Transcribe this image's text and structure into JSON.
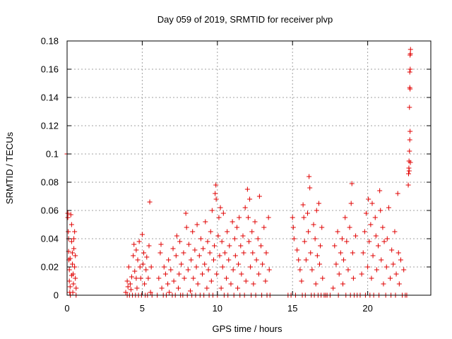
{
  "chart_data": {
    "type": "scatter",
    "title": "Day 059 of 2019, SRMTID for receiver plvp",
    "xlabel": "GPS time / hours",
    "ylabel": "SRMTID / TECUs",
    "xlim": [
      0,
      24.2
    ],
    "ylim": [
      0,
      0.18
    ],
    "xticks": [
      0,
      5,
      10,
      15,
      20
    ],
    "yticks": [
      0,
      0.02,
      0.04,
      0.06,
      0.08,
      0.1,
      0.12,
      0.14,
      0.16,
      0.18
    ],
    "xtick_labels": [
      "0",
      "5",
      "10",
      "15",
      "20"
    ],
    "ytick_labels": [
      "0",
      "0.02",
      "0.04",
      "0.06",
      "0.08",
      "0.1",
      "0.12",
      "0.14",
      "0.16",
      "0.18"
    ],
    "grid": true,
    "marker": "+",
    "color": "#e00000",
    "series": [
      {
        "values": [
          [
            0.0,
            0.1
          ],
          [
            0.05,
            0.058
          ],
          [
            0.05,
            0.055
          ],
          [
            0.08,
            0.045
          ],
          [
            0.1,
            0.04
          ],
          [
            0.1,
            0.031
          ],
          [
            0.12,
            0.025
          ],
          [
            0.15,
            0.018
          ],
          [
            0.15,
            0.01
          ],
          [
            0.2,
            0.006
          ],
          [
            0.18,
            0.002
          ],
          [
            0.22,
            0.0
          ],
          [
            0.25,
            0.057
          ],
          [
            0.3,
            0.05
          ],
          [
            0.3,
            0.038
          ],
          [
            0.35,
            0.03
          ],
          [
            0.35,
            0.022
          ],
          [
            0.4,
            0.015
          ],
          [
            0.42,
            0.008
          ],
          [
            0.45,
            0.04
          ],
          [
            0.45,
            0.033
          ],
          [
            0.5,
            0.02
          ],
          [
            0.5,
            0.045
          ],
          [
            0.55,
            0.028
          ],
          [
            0.55,
            0.012
          ],
          [
            0.6,
            0.0
          ],
          [
            0.6,
            0.005
          ],
          [
            0.3,
            0.014
          ],
          [
            0.2,
            0.026
          ],
          [
            0.38,
            0.002
          ],
          [
            3.9,
            0.002
          ],
          [
            4.0,
            0.0
          ],
          [
            4.0,
            0.01
          ],
          [
            4.05,
            0.006
          ],
          [
            4.1,
            0.02
          ],
          [
            4.15,
            0.0
          ],
          [
            4.2,
            0.008
          ],
          [
            4.3,
            0.013
          ],
          [
            4.35,
            0.0
          ],
          [
            4.4,
            0.028
          ],
          [
            4.5,
            0.017
          ],
          [
            4.55,
            0.0
          ],
          [
            4.6,
            0.032
          ],
          [
            4.65,
            0.005
          ],
          [
            4.7,
            0.025
          ],
          [
            4.75,
            0.0
          ],
          [
            4.8,
            0.038
          ],
          [
            4.85,
            0.02
          ],
          [
            4.9,
            0.012
          ],
          [
            4.95,
            0.0
          ],
          [
            5.0,
            0.043
          ],
          [
            5.05,
            0.022
          ],
          [
            5.1,
            0.03
          ],
          [
            5.15,
            0.008
          ],
          [
            5.2,
            0.0
          ],
          [
            5.25,
            0.018
          ],
          [
            5.3,
            0.027
          ],
          [
            5.35,
            0.0
          ],
          [
            5.4,
            0.012
          ],
          [
            5.45,
            0.035
          ],
          [
            5.5,
            0.066
          ],
          [
            5.55,
            0.002
          ],
          [
            5.6,
            0.02
          ],
          [
            5.65,
            0.0
          ],
          [
            4.45,
            0.036
          ],
          [
            4.25,
            0.004
          ],
          [
            4.6,
            0.012
          ],
          [
            6.0,
            0.0
          ],
          [
            6.1,
            0.012
          ],
          [
            6.2,
            0.03
          ],
          [
            6.25,
            0.036
          ],
          [
            6.3,
            0.005
          ],
          [
            6.4,
            0.0
          ],
          [
            6.45,
            0.02
          ],
          [
            6.55,
            0.015
          ],
          [
            6.6,
            0.0
          ],
          [
            6.7,
            0.008
          ],
          [
            6.75,
            0.025
          ],
          [
            6.8,
            0.002
          ],
          [
            6.9,
            0.018
          ],
          [
            7.0,
            0.0
          ],
          [
            7.05,
            0.033
          ],
          [
            7.1,
            0.01
          ],
          [
            7.2,
            0.0
          ],
          [
            7.25,
            0.028
          ],
          [
            7.3,
            0.042
          ],
          [
            7.4,
            0.005
          ],
          [
            7.45,
            0.015
          ],
          [
            7.5,
            0.038
          ],
          [
            7.55,
            0.0
          ],
          [
            7.6,
            0.022
          ],
          [
            7.7,
            0.0
          ],
          [
            7.75,
            0.03
          ],
          [
            7.8,
            0.012
          ],
          [
            7.9,
            0.058
          ],
          [
            7.95,
            0.048
          ],
          [
            8.0,
            0.0
          ],
          [
            8.05,
            0.018
          ],
          [
            8.1,
            0.036
          ],
          [
            8.2,
            0.003
          ],
          [
            8.25,
            0.025
          ],
          [
            8.3,
            0.0
          ],
          [
            8.35,
            0.045
          ],
          [
            8.4,
            0.012
          ],
          [
            8.5,
            0.032
          ],
          [
            8.55,
            0.0
          ],
          [
            8.6,
            0.02
          ],
          [
            8.65,
            0.05
          ],
          [
            8.7,
            0.008
          ],
          [
            8.8,
            0.028
          ],
          [
            8.85,
            0.0
          ],
          [
            8.9,
            0.04
          ],
          [
            9.0,
            0.015
          ],
          [
            9.05,
            0.033
          ],
          [
            9.1,
            0.0
          ],
          [
            9.15,
            0.022
          ],
          [
            9.2,
            0.052
          ],
          [
            9.3,
            0.005
          ],
          [
            9.35,
            0.038
          ],
          [
            9.4,
            0.018
          ],
          [
            9.45,
            0.0
          ],
          [
            9.5,
            0.03
          ],
          [
            9.55,
            0.045
          ],
          [
            9.6,
            0.01
          ],
          [
            9.65,
            0.06
          ],
          [
            9.7,
            0.0
          ],
          [
            9.75,
            0.025
          ],
          [
            9.8,
            0.035
          ],
          [
            9.85,
            0.072
          ],
          [
            9.9,
            0.078
          ],
          [
            9.92,
            0.068
          ],
          [
            9.95,
            0.015
          ],
          [
            10.0,
            0.0
          ],
          [
            10.05,
            0.042
          ],
          [
            10.1,
            0.055
          ],
          [
            10.15,
            0.028
          ],
          [
            10.2,
            0.062
          ],
          [
            10.25,
            0.005
          ],
          [
            10.3,
            0.038
          ],
          [
            10.35,
            0.02
          ],
          [
            10.4,
            0.058
          ],
          [
            10.45,
            0.0
          ],
          [
            10.5,
            0.03
          ],
          [
            10.6,
            0.012
          ],
          [
            10.65,
            0.045
          ],
          [
            10.7,
            0.0
          ],
          [
            10.75,
            0.025
          ],
          [
            10.8,
            0.035
          ],
          [
            10.9,
            0.008
          ],
          [
            11.0,
            0.052
          ],
          [
            11.05,
            0.018
          ],
          [
            11.1,
            0.0
          ],
          [
            11.15,
            0.04
          ],
          [
            11.2,
            0.028
          ],
          [
            11.3,
            0.048
          ],
          [
            11.35,
            0.005
          ],
          [
            11.4,
            0.022
          ],
          [
            11.45,
            0.055
          ],
          [
            11.5,
            0.0
          ],
          [
            11.55,
            0.035
          ],
          [
            11.6,
            0.015
          ],
          [
            11.7,
            0.042
          ],
          [
            11.75,
            0.03
          ],
          [
            11.8,
            0.0
          ],
          [
            11.85,
            0.062
          ],
          [
            11.9,
            0.01
          ],
          [
            12.0,
            0.075
          ],
          [
            12.05,
            0.055
          ],
          [
            12.1,
            0.038
          ],
          [
            12.15,
            0.068
          ],
          [
            12.2,
            0.02
          ],
          [
            12.25,
            0.0
          ],
          [
            12.3,
            0.045
          ],
          [
            12.35,
            0.03
          ],
          [
            12.4,
            0.008
          ],
          [
            12.5,
            0.052
          ],
          [
            12.55,
            0.0
          ],
          [
            12.6,
            0.025
          ],
          [
            12.7,
            0.04
          ],
          [
            12.75,
            0.015
          ],
          [
            12.8,
            0.07
          ],
          [
            12.9,
            0.035
          ],
          [
            12.95,
            0.0
          ],
          [
            13.0,
            0.022
          ],
          [
            13.1,
            0.048
          ],
          [
            13.2,
            0.01
          ],
          [
            13.25,
            0.03
          ],
          [
            13.3,
            0.0
          ],
          [
            13.4,
            0.055
          ],
          [
            13.45,
            0.018
          ],
          [
            13.5,
            0.0
          ],
          [
            14.7,
            0.0
          ],
          [
            14.9,
            0.0
          ],
          [
            15.0,
            0.055
          ],
          [
            15.05,
            0.048
          ],
          [
            15.1,
            0.04
          ],
          [
            15.2,
            0.0
          ],
          [
            15.3,
            0.032
          ],
          [
            15.4,
            0.025
          ],
          [
            15.5,
            0.018
          ],
          [
            15.6,
            0.01
          ],
          [
            15.65,
            0.0
          ],
          [
            15.7,
            0.064
          ],
          [
            15.75,
            0.055
          ],
          [
            15.8,
            0.038
          ],
          [
            15.85,
            0.0
          ],
          [
            15.9,
            0.025
          ],
          [
            16.0,
            0.058
          ],
          [
            16.05,
            0.045
          ],
          [
            16.1,
            0.084
          ],
          [
            16.15,
            0.076
          ],
          [
            16.2,
            0.03
          ],
          [
            16.25,
            0.0
          ],
          [
            16.3,
            0.018
          ],
          [
            16.4,
            0.05
          ],
          [
            16.45,
            0.0
          ],
          [
            16.5,
            0.04
          ],
          [
            16.55,
            0.008
          ],
          [
            16.6,
            0.06
          ],
          [
            16.65,
            0.028
          ],
          [
            16.7,
            0.0
          ],
          [
            16.75,
            0.065
          ],
          [
            16.8,
            0.022
          ],
          [
            16.85,
            0.035
          ],
          [
            16.9,
            0.0
          ],
          [
            16.95,
            0.048
          ],
          [
            17.0,
            0.012
          ],
          [
            17.1,
            0.0
          ],
          [
            17.2,
            0.0
          ],
          [
            17.3,
            0.0
          ],
          [
            17.5,
            0.0
          ],
          [
            17.7,
            0.005
          ],
          [
            17.8,
            0.035
          ],
          [
            17.9,
            0.022
          ],
          [
            18.0,
            0.045
          ],
          [
            18.05,
            0.0
          ],
          [
            18.1,
            0.015
          ],
          [
            18.2,
            0.03
          ],
          [
            18.3,
            0.04
          ],
          [
            18.35,
            0.008
          ],
          [
            18.4,
            0.025
          ],
          [
            18.5,
            0.055
          ],
          [
            18.55,
            0.0
          ],
          [
            18.6,
            0.038
          ],
          [
            18.7,
            0.018
          ],
          [
            18.8,
            0.048
          ],
          [
            18.85,
            0.0
          ],
          [
            18.9,
            0.065
          ],
          [
            18.95,
            0.079
          ],
          [
            19.0,
            0.03
          ],
          [
            19.05,
            0.012
          ],
          [
            19.1,
            0.0
          ],
          [
            19.2,
            0.042
          ],
          [
            19.3,
            0.0
          ],
          [
            19.5,
            0.0
          ],
          [
            19.6,
            0.015
          ],
          [
            19.7,
            0.03
          ],
          [
            19.8,
            0.045
          ],
          [
            19.85,
            0.0
          ],
          [
            19.9,
            0.058
          ],
          [
            20.0,
            0.02
          ],
          [
            20.05,
            0.068
          ],
          [
            20.1,
            0.038
          ],
          [
            20.15,
            0.0
          ],
          [
            20.2,
            0.05
          ],
          [
            20.25,
            0.012
          ],
          [
            20.3,
            0.065
          ],
          [
            20.35,
            0.028
          ],
          [
            20.4,
            0.0
          ],
          [
            20.5,
            0.055
          ],
          [
            20.55,
            0.042
          ],
          [
            20.6,
            0.018
          ],
          [
            20.7,
            0.035
          ],
          [
            20.75,
            0.0
          ],
          [
            20.8,
            0.074
          ],
          [
            20.85,
            0.06
          ],
          [
            20.9,
            0.025
          ],
          [
            21.0,
            0.048
          ],
          [
            21.05,
            0.008
          ],
          [
            21.1,
            0.038
          ],
          [
            21.2,
            0.0
          ],
          [
            21.25,
            0.02
          ],
          [
            21.3,
            0.04
          ],
          [
            21.4,
            0.062
          ],
          [
            21.5,
            0.012
          ],
          [
            21.55,
            0.0
          ],
          [
            21.6,
            0.032
          ],
          [
            21.7,
            0.022
          ],
          [
            21.8,
            0.045
          ],
          [
            21.85,
            0.0
          ],
          [
            21.9,
            0.015
          ],
          [
            22.0,
            0.072
          ],
          [
            22.05,
            0.03
          ],
          [
            22.1,
            0.008
          ],
          [
            22.2,
            0.025
          ],
          [
            22.3,
            0.0
          ],
          [
            22.4,
            0.018
          ],
          [
            22.5,
            0.0
          ],
          [
            22.6,
            0.0
          ],
          [
            22.7,
            0.078
          ],
          [
            22.72,
            0.086
          ],
          [
            22.74,
            0.09
          ],
          [
            22.75,
            0.095
          ],
          [
            22.78,
            0.102
          ],
          [
            22.8,
            0.11
          ],
          [
            22.82,
            0.116
          ],
          [
            22.78,
            0.133
          ],
          [
            22.8,
            0.147
          ],
          [
            22.82,
            0.146
          ],
          [
            22.8,
            0.158
          ],
          [
            22.83,
            0.16
          ],
          [
            22.82,
            0.17
          ],
          [
            22.84,
            0.171
          ],
          [
            22.85,
            0.174
          ],
          [
            22.76,
            0.088
          ],
          [
            22.84,
            0.094
          ]
        ]
      }
    ]
  }
}
